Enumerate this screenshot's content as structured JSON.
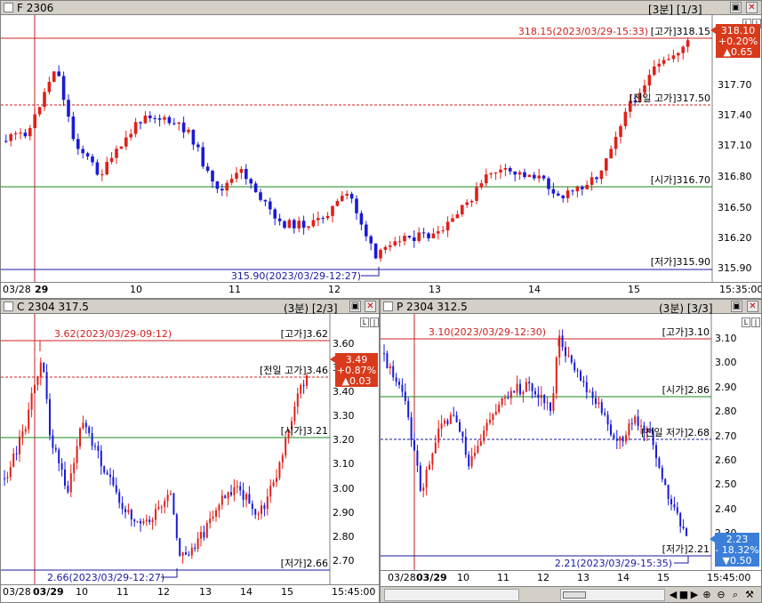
{
  "panel1": {
    "title": "F 2306",
    "info": "[3분] [1/3]",
    "ylabels": [
      "318.15",
      "317.70",
      "317.40",
      "317.10",
      "316.80",
      "316.50",
      "316.20",
      "315.90"
    ],
    "price_badge": {
      "price": "318.10",
      "pct": "+0.20%",
      "chg": "▲0.65",
      "color": "#d93a1b"
    },
    "hline_labels": {
      "high": "318.15(2023/03/29-15:33)",
      "high_tag": "[고가]318.15",
      "prev_high": "[전일 고가]317.50",
      "open": "[시가]316.70",
      "low": "[저가]315.90",
      "low_mark": "315.90(2023/03/29-12:27)"
    },
    "xlabels": [
      "03/28",
      "29",
      "10",
      "11",
      "12",
      "13",
      "14",
      "15",
      "15:35:00"
    ]
  },
  "panel2": {
    "title": "C 2304 317.5",
    "info": "(3분) [2/3]",
    "ylabels": [
      "3.60",
      "3.50",
      "3.40",
      "3.30",
      "3.20",
      "3.10",
      "3.00",
      "2.90",
      "2.80",
      "2.70"
    ],
    "price_badge": {
      "price": "3.49",
      "pct": "+0.87%",
      "chg": "▲0.03",
      "color": "#d93a1b"
    },
    "hline_labels": {
      "high_mark": "3.62(2023/03/29-09:12)",
      "high": "[고가]3.62",
      "prev_high": "[전일 고가]3.46",
      "open": "[시가]3.21",
      "low": "[저가]2.66",
      "low_mark": "2.66(2023/03/29-12:27)"
    },
    "xlabels": [
      "03/28",
      "03/29",
      "10",
      "11",
      "12",
      "13",
      "14",
      "15",
      "15:45:00"
    ]
  },
  "panel3": {
    "title": "P 2304 312.5",
    "info": "(3분) [3/3]",
    "ylabels": [
      "3.10",
      "3.00",
      "2.90",
      "2.80",
      "2.70",
      "2.60",
      "2.50",
      "2.40",
      "2.30",
      "2.20"
    ],
    "price_badge": {
      "price": "2.23",
      "pct": "- 18.32%",
      "chg": "▼0.50",
      "color": "#3b7fd9"
    },
    "hline_labels": {
      "high_mark": "3.10(2023/03/29-12:30)",
      "high": "[고가]3.10",
      "open": "[시가]2.86",
      "prev_low": "[전일 저가]2.68",
      "low": "[저가]2.21",
      "low_mark": "2.21(2023/03/29-15:35)"
    },
    "xlabels": [
      "03/28",
      "03/29",
      "10",
      "11",
      "12",
      "13",
      "14",
      "15",
      "15:45:00"
    ]
  },
  "icons": {
    "zoom_in": "zoom-in-icon",
    "zoom_out": "zoom-out-icon",
    "search": "search-icon",
    "wrench": "wrench-icon"
  }
}
